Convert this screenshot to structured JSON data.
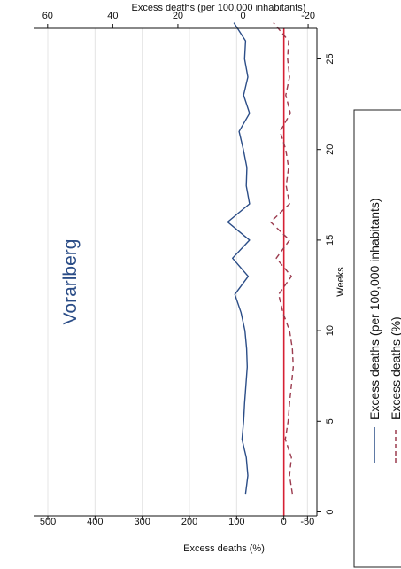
{
  "chart_data": {
    "type": "line",
    "title": "Vorarlberg",
    "xlabel": "Weeks",
    "ylabel_left": "Excess deaths (%)",
    "ylabel_right": "Excess deaths (per 100,000 inhabitants)",
    "xlim": [
      0,
      28
    ],
    "ylim_left": [
      -70,
      530
    ],
    "ylim_right": [
      -22.7,
      64.3
    ],
    "x_ticks": [
      0,
      5,
      10,
      15,
      20,
      25
    ],
    "y_ticks_left": [
      500,
      400,
      300,
      200,
      100,
      0,
      -50
    ],
    "y_ticks_right": [
      60,
      40,
      20,
      0,
      -20
    ],
    "grid": true,
    "legend_position": "right",
    "series": [
      {
        "name": "Excess deaths (per 100,000 inhabitants)",
        "axis": "right",
        "color": "#2b4d87",
        "style": "solid",
        "x": [
          1,
          2,
          3,
          4,
          5,
          6,
          7,
          8,
          9,
          10,
          11,
          12,
          13,
          14,
          15,
          16,
          17,
          18,
          19,
          20,
          21,
          22,
          23,
          24,
          25,
          26,
          27
        ],
        "y": [
          -0.8,
          -1.5,
          -1.0,
          0.3,
          -0.2,
          -0.5,
          -0.9,
          -1.3,
          -1.1,
          -0.6,
          0.6,
          2.5,
          -1.6,
          3.2,
          -2.0,
          4.7,
          -2.0,
          -1.0,
          -1.2,
          -0.1,
          1.2,
          -2.0,
          -0.2,
          -1.5,
          -0.5,
          -0.8,
          2.8
        ]
      },
      {
        "name": "Excess deaths (%)",
        "axis": "left",
        "color": "#9b3b4e",
        "style": "dashed",
        "x": [
          1,
          2,
          3,
          4,
          5,
          6,
          7,
          8,
          9,
          10,
          11,
          12,
          13,
          14,
          15,
          16,
          17,
          18,
          19,
          20,
          21,
          22,
          23,
          24,
          25,
          26,
          27
        ],
        "y": [
          -18,
          -12,
          -16,
          -3,
          -9,
          -12,
          -16,
          -20,
          -18,
          -12,
          2,
          11,
          -16,
          16,
          -12,
          28,
          -12,
          -5,
          -10,
          -4,
          8,
          -14,
          -4,
          -12,
          -8,
          -10,
          22
        ]
      }
    ],
    "zero_line_color": "#d62034"
  }
}
